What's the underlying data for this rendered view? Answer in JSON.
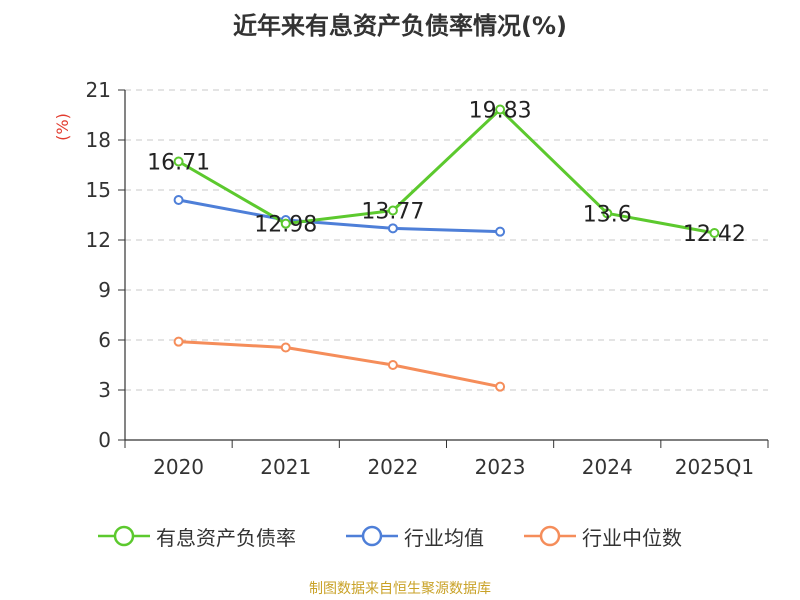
{
  "title": "近年来有息资产负债率情况(%)",
  "source": "制图数据来自恒生聚源数据库",
  "chart_data": {
    "type": "line",
    "ylabel": "(%)",
    "ylim": [
      0,
      21
    ],
    "yticks": [
      0,
      3,
      6,
      9,
      12,
      15,
      18,
      21
    ],
    "categories": [
      "2020",
      "2021",
      "2022",
      "2023",
      "2024",
      "2025Q1"
    ],
    "grid": "horizontal-dashed",
    "legend_position": "bottom",
    "series": [
      {
        "name": "有息资产负债率",
        "color": "#5cc92e",
        "values": [
          16.71,
          12.98,
          13.77,
          19.83,
          13.6,
          12.42
        ],
        "labels": [
          "16.71",
          "12.98",
          "13.77",
          "19.83",
          "13.6",
          "12.42"
        ]
      },
      {
        "name": "行业均值",
        "color": "#4e7fd8",
        "values": [
          14.4,
          13.2,
          12.7,
          12.5,
          null,
          null
        ]
      },
      {
        "name": "行业中位数",
        "color": "#f58d5a",
        "values": [
          5.9,
          5.55,
          4.5,
          3.2,
          null,
          null
        ]
      }
    ]
  }
}
